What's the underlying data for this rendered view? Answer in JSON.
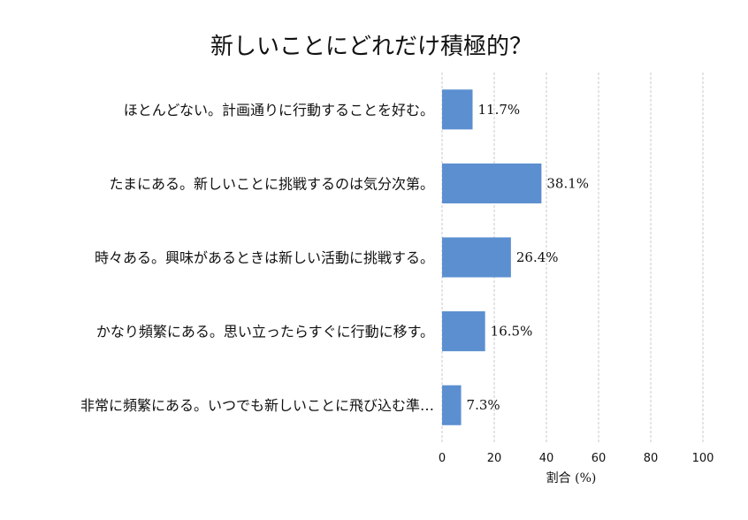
{
  "chart_data": {
    "type": "bar",
    "orientation": "horizontal",
    "title": "新しいことにどれだけ積極的？",
    "categories": [
      "ほとんどない。計画通りに行動することを好む。",
      "たまにある。新しいことに挑戦するのは気分次第。",
      "時々ある。興味があるときは新しい活動に挑戦する。",
      "かなり頻繁にある。思い立ったらすぐに行動に移す。",
      "非常に頻繁にある。いつでも新しいことに飛び込む準…"
    ],
    "values": [
      11.7,
      38.1,
      26.4,
      16.5,
      7.3
    ],
    "value_labels": [
      "11.7%",
      "38.1%",
      "26.4%",
      "16.5%",
      "7.3%"
    ],
    "xlabel": "割合 (%)",
    "ylabel": "",
    "xlim": [
      0,
      100
    ],
    "xticks": [
      0,
      20,
      40,
      60,
      80,
      100
    ],
    "grid": "x-dashed",
    "bar_color": "#5b8fd0"
  }
}
